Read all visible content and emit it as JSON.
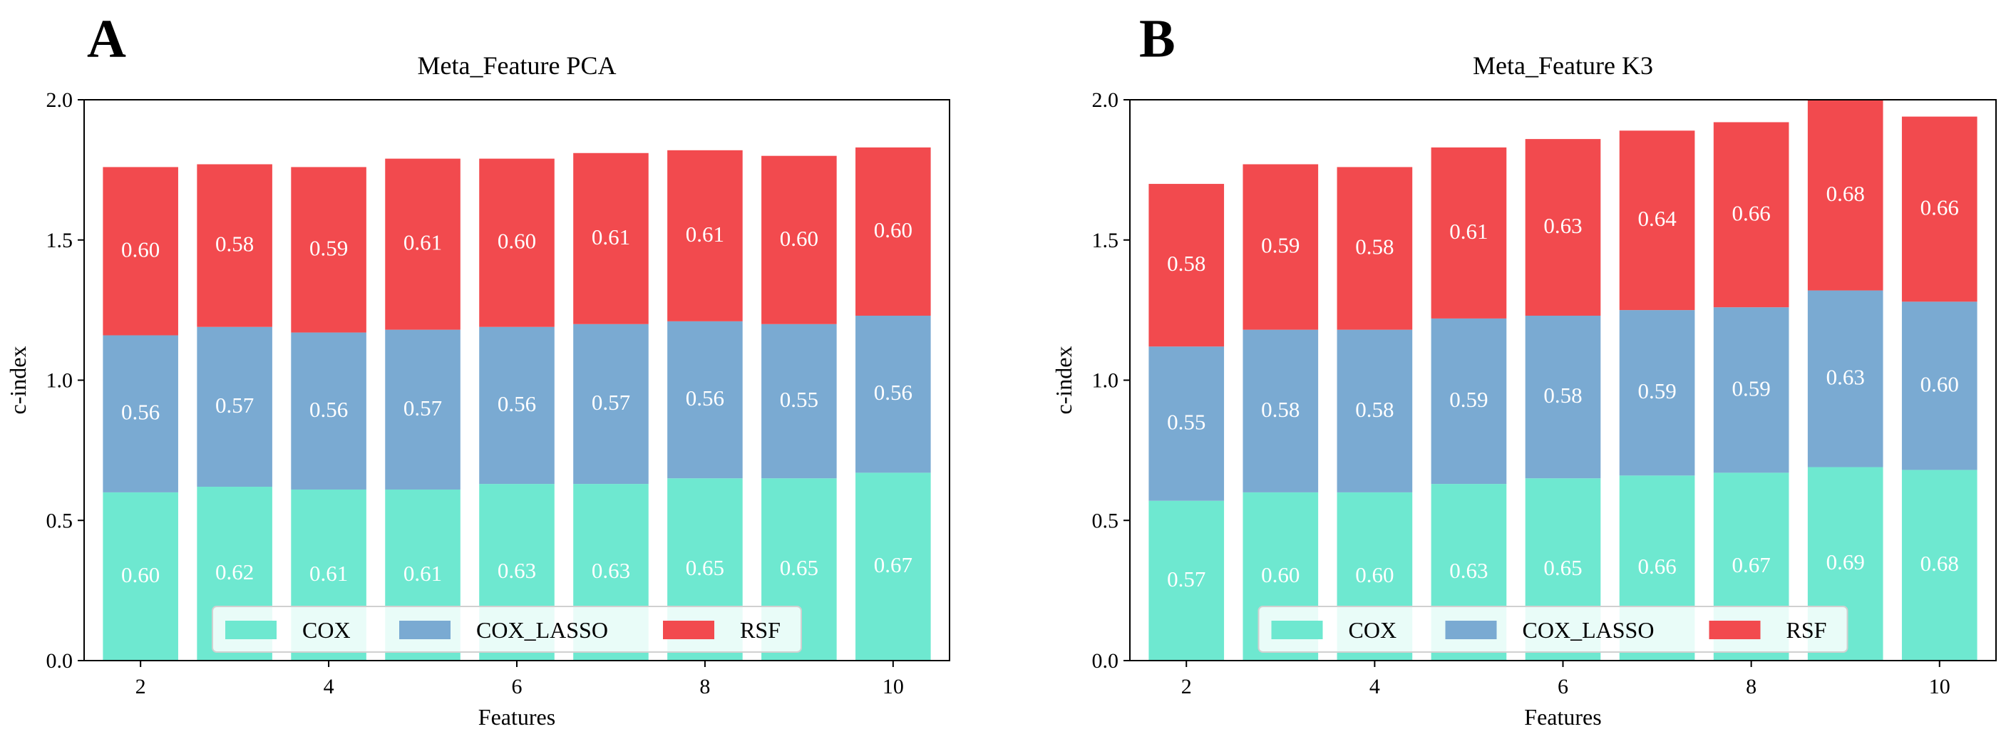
{
  "chart_data": [
    {
      "type": "bar",
      "stacked": true,
      "panel_label": "A",
      "title": "Meta_Feature PCA",
      "xlabel": "Features",
      "ylabel": "c-index",
      "ylim": [
        0,
        2.0
      ],
      "yticks": [
        0.0,
        0.5,
        1.0,
        1.5,
        2.0
      ],
      "ytick_labels": [
        "0.0",
        "0.5",
        "1.0",
        "1.5",
        "2.0"
      ],
      "xticks": [
        2,
        4,
        6,
        8,
        10
      ],
      "xtick_labels": [
        "2",
        "4",
        "6",
        "8",
        "10"
      ],
      "x": [
        2,
        3,
        4,
        5,
        6,
        7,
        8,
        9,
        10
      ],
      "legend_position": "lower-center",
      "series": [
        {
          "name": "COX",
          "color": "#6ee8d0",
          "values": [
            0.6,
            0.62,
            0.61,
            0.61,
            0.63,
            0.63,
            0.65,
            0.65,
            0.67
          ],
          "labels": [
            "0.60",
            "0.62",
            "0.61",
            "0.61",
            "0.63",
            "0.63",
            "0.65",
            "0.65",
            "0.67"
          ]
        },
        {
          "name": "COX_LASSO",
          "color": "#7aaad2",
          "values": [
            0.56,
            0.57,
            0.56,
            0.57,
            0.56,
            0.57,
            0.56,
            0.55,
            0.56
          ],
          "labels": [
            "0.56",
            "0.57",
            "0.56",
            "0.57",
            "0.56",
            "0.57",
            "0.56",
            "0.55",
            "0.56"
          ]
        },
        {
          "name": "RSF",
          "color": "#f24a4e",
          "values": [
            0.6,
            0.58,
            0.59,
            0.61,
            0.6,
            0.61,
            0.61,
            0.6,
            0.6
          ],
          "labels": [
            "0.60",
            "0.58",
            "0.59",
            "0.61",
            "0.60",
            "0.61",
            "0.61",
            "0.60",
            "0.60"
          ]
        }
      ]
    },
    {
      "type": "bar",
      "stacked": true,
      "panel_label": "B",
      "title": "Meta_Feature K3",
      "xlabel": "Features",
      "ylabel": "c-index",
      "ylim": [
        0,
        2.0
      ],
      "yticks": [
        0.0,
        0.5,
        1.0,
        1.5,
        2.0
      ],
      "ytick_labels": [
        "0.0",
        "0.5",
        "1.0",
        "1.5",
        "2.0"
      ],
      "xticks": [
        2,
        4,
        6,
        8,
        10
      ],
      "xtick_labels": [
        "2",
        "4",
        "6",
        "8",
        "10"
      ],
      "x": [
        2,
        3,
        4,
        5,
        6,
        7,
        8,
        9,
        10
      ],
      "legend_position": "lower-center",
      "series": [
        {
          "name": "COX",
          "color": "#6ee8d0",
          "values": [
            0.57,
            0.6,
            0.6,
            0.63,
            0.65,
            0.66,
            0.67,
            0.69,
            0.68
          ],
          "labels": [
            "0.57",
            "0.60",
            "0.60",
            "0.63",
            "0.65",
            "0.66",
            "0.67",
            "0.69",
            "0.68"
          ]
        },
        {
          "name": "COX_LASSO",
          "color": "#7aaad2",
          "values": [
            0.55,
            0.58,
            0.58,
            0.59,
            0.58,
            0.59,
            0.59,
            0.63,
            0.6
          ],
          "labels": [
            "0.55",
            "0.58",
            "0.58",
            "0.59",
            "0.58",
            "0.59",
            "0.59",
            "0.63",
            "0.60"
          ]
        },
        {
          "name": "RSF",
          "color": "#f24a4e",
          "values": [
            0.58,
            0.59,
            0.58,
            0.61,
            0.63,
            0.64,
            0.66,
            0.68,
            0.66
          ],
          "labels": [
            "0.58",
            "0.59",
            "0.58",
            "0.61",
            "0.63",
            "0.64",
            "0.66",
            "0.68",
            "0.66"
          ]
        }
      ]
    }
  ]
}
